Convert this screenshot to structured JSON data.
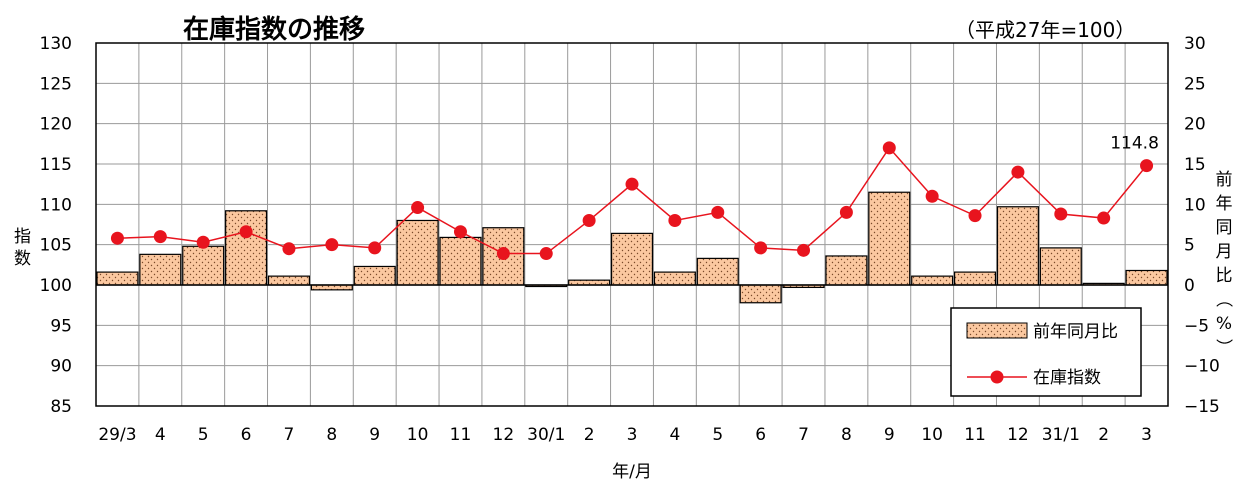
{
  "chart_data": {
    "type": "bar",
    "title": "在庫指数の推移",
    "subtitle": "（平成27年=100）",
    "xlabel": "年/月",
    "ylabel": "指数",
    "y2label": "前年同月比（%）",
    "categories": [
      "29/3",
      "4",
      "5",
      "6",
      "7",
      "8",
      "9",
      "10",
      "11",
      "12",
      "30/1",
      "2",
      "3",
      "4",
      "5",
      "6",
      "7",
      "8",
      "9",
      "10",
      "11",
      "12",
      "31/1",
      "2",
      "3"
    ],
    "y_left": {
      "min": 85,
      "max": 130,
      "ticks": [
        85,
        90,
        95,
        100,
        105,
        110,
        115,
        120,
        125,
        130
      ]
    },
    "y_right": {
      "min": -15,
      "max": 30,
      "ticks": [
        -15,
        -10,
        -5,
        0,
        5,
        10,
        15,
        20,
        25,
        30
      ]
    },
    "y_right_tick_labels": [
      "−15",
      "−10",
      "−5",
      "0",
      "5",
      "10",
      "15",
      "20",
      "25",
      "30"
    ],
    "grid": true,
    "legend_position": "bottom-right",
    "series": [
      {
        "name": "前年同月比",
        "type": "bar",
        "axis": "right",
        "color": "#fbc8a0",
        "values": [
          1.6,
          3.8,
          4.8,
          9.2,
          1.1,
          -0.6,
          2.3,
          8.0,
          5.9,
          7.1,
          -0.1,
          0.6,
          6.4,
          1.6,
          3.3,
          -2.2,
          -0.3,
          3.6,
          11.5,
          1.1,
          1.6,
          9.7,
          4.6,
          0.2,
          1.8
        ]
      },
      {
        "name": "在庫指数",
        "type": "line",
        "axis": "left",
        "color": "#e8141e",
        "values": [
          105.8,
          106.0,
          105.3,
          106.6,
          104.5,
          105.0,
          104.6,
          109.6,
          106.6,
          103.9,
          103.9,
          108.0,
          112.5,
          108.0,
          109.0,
          104.6,
          104.3,
          109.0,
          117.0,
          111.0,
          108.6,
          114.0,
          108.8,
          108.3,
          114.8
        ]
      }
    ],
    "annotation": {
      "text": "114.8",
      "category_index": 24
    }
  }
}
